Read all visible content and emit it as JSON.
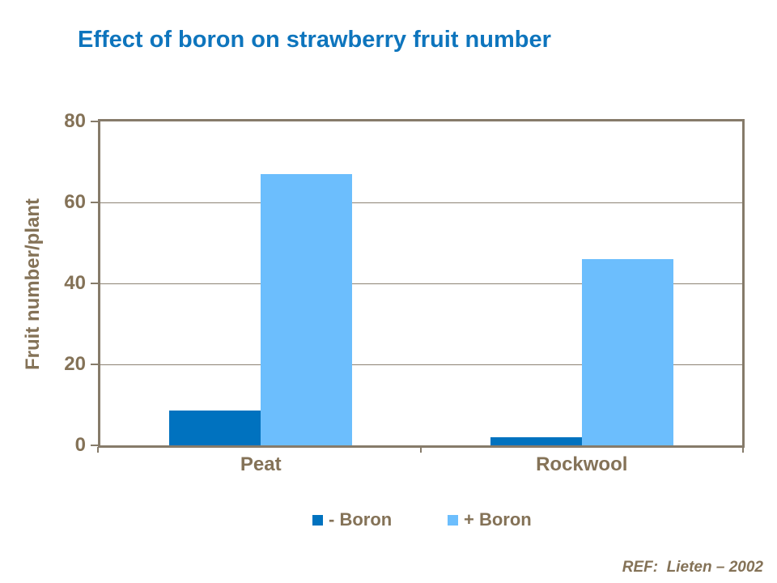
{
  "slide": {
    "title": "Effect of boron on strawberry fruit number",
    "reference": "REF:  Lieten – 2002"
  },
  "colors": {
    "background": "#FFFFFF",
    "title_text": "#0E75BD",
    "axis_text": "#847257",
    "axis_line": "#867B6A",
    "gridline": "#8D8374",
    "minus_boron": "#0072BF",
    "plus_boron": "#6CBEFD"
  },
  "chart_data": {
    "type": "bar",
    "title": "Effect of boron on strawberry fruit number",
    "categories": [
      "Peat",
      "Rockwool"
    ],
    "series": [
      {
        "name": "- Boron",
        "color": "#0072BF",
        "values": [
          8.5,
          2
        ]
      },
      {
        "name": "+ Boron",
        "color": "#6CBEFD",
        "values": [
          67,
          46
        ]
      }
    ],
    "xlabel": "",
    "ylabel": "Fruit number/plant",
    "yticks": [
      0,
      20,
      40,
      60,
      80
    ],
    "ylim": [
      0,
      80
    ],
    "grid": true,
    "legend_position": "bottom"
  }
}
